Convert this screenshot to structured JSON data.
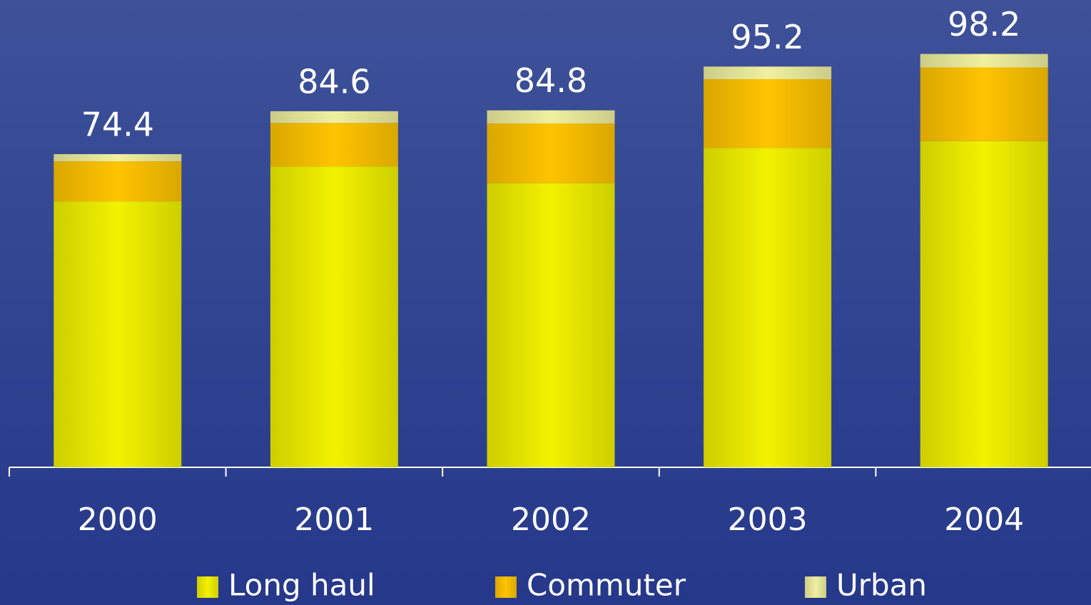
{
  "chart_data": {
    "type": "stacked_bar",
    "categories": [
      "2000",
      "2001",
      "2002",
      "2003",
      "2004"
    ],
    "series": [
      {
        "name": "Long haul",
        "color": "#f2f200",
        "values": [
          63.2,
          71.5,
          67.5,
          75.9,
          77.5
        ]
      },
      {
        "name": "Commuter",
        "color": "#ffc400",
        "values": [
          9.5,
          10.3,
          14.2,
          16.3,
          17.5
        ]
      },
      {
        "name": "Urban",
        "color": "#f0f0a0",
        "values": [
          1.7,
          2.8,
          3.1,
          3.0,
          3.2
        ]
      }
    ],
    "totals": [
      74.4,
      84.6,
      84.8,
      95.2,
      98.2
    ]
  }
}
